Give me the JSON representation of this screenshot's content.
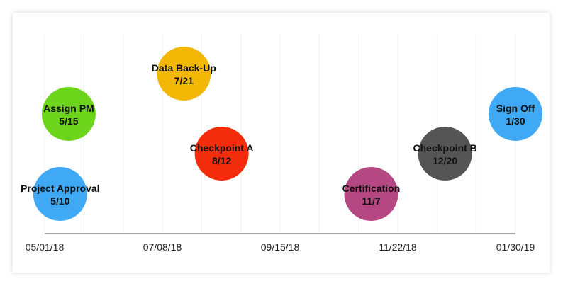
{
  "chart_data": {
    "type": "scatter",
    "title": "",
    "xlabel": "",
    "ylabel": "",
    "x_axis_ticks": [
      "05/01/18",
      "07/08/18",
      "09/15/18",
      "11/22/18",
      "01/30/19"
    ],
    "x_range": [
      "2018-05-01",
      "2019-01-30"
    ],
    "grid": true,
    "milestones": [
      {
        "name": "Project Approval",
        "date_label": "5/10",
        "date": "2018-05-10",
        "level": 1,
        "color": "#3fa9f5"
      },
      {
        "name": "Assign PM",
        "date_label": "5/15",
        "date": "2018-05-15",
        "level": 3,
        "color": "#6dd41c"
      },
      {
        "name": "Data Back-Up",
        "date_label": "7/21",
        "date": "2018-07-21",
        "level": 4,
        "color": "#f2b705"
      },
      {
        "name": "Checkpoint A",
        "date_label": "8/12",
        "date": "2018-08-12",
        "level": 2,
        "color": "#f32c0c"
      },
      {
        "name": "Certification",
        "date_label": "11/7",
        "date": "2018-11-07",
        "level": 1,
        "color": "#b54782"
      },
      {
        "name": "Checkpoint B",
        "date_label": "12/20",
        "date": "2018-12-20",
        "level": 2,
        "color": "#555555"
      },
      {
        "name": "Sign Off",
        "date_label": "1/30",
        "date": "2019-01-30",
        "level": 3,
        "color": "#3fa9f5"
      }
    ]
  }
}
